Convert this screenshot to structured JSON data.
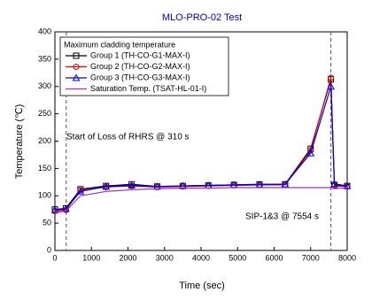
{
  "chart_data": {
    "type": "line",
    "title": "MLO-PRO-02 Test",
    "title_color": "#0000cc",
    "xlabel": "Time (sec)",
    "ylabel": "Temperature (℃)",
    "legend_title": "Maximum cladding temperature",
    "legend": "upper left",
    "x": [
      0,
      300,
      700,
      1400,
      2100,
      2800,
      3500,
      4200,
      4900,
      5600,
      6300,
      7000,
      7554,
      7650,
      8000
    ],
    "series": [
      {
        "name": "Group 1 (TH-CO-G1-MAX-I)",
        "color": "#000000",
        "marker": "square",
        "values": [
          75,
          77,
          112,
          118,
          121,
          117,
          118,
          119,
          120,
          121,
          121,
          186,
          313,
          120,
          118
        ]
      },
      {
        "name": "Group 2 (TH-CO-G2-MAX-I)",
        "color": "#e00000",
        "marker": "circle",
        "values": [
          72,
          74,
          110,
          116,
          118,
          116,
          117,
          118,
          119,
          120,
          120,
          183,
          316,
          118,
          117
        ]
      },
      {
        "name": "Group 3 (TH-CO-G3-MAX-I)",
        "color": "#0000e0",
        "marker": "triangle",
        "values": [
          74,
          76,
          108,
          117,
          119,
          117,
          118,
          119,
          120,
          120,
          121,
          178,
          300,
          122,
          118
        ]
      },
      {
        "name": "Saturation Temp. (TSAT-HL-01-I)",
        "color": "#9933cc",
        "values": [
          70,
          72,
          100,
          108,
          111,
          113,
          114,
          114,
          115,
          115,
          115,
          115,
          115,
          113,
          115
        ]
      }
    ],
    "vlines": [
      310,
      7554
    ],
    "annotations": [
      "Start of Loss of RHRS @ 310 s",
      "SIP-1&3 @ 7554 s"
    ],
    "xlim": [
      0,
      8000
    ],
    "xticks": [
      0,
      1000,
      2000,
      3000,
      4000,
      5000,
      6000,
      7000,
      8000
    ],
    "ylim": [
      0,
      400
    ],
    "yticks": [
      0,
      50,
      100,
      150,
      200,
      250,
      300,
      350,
      400
    ]
  }
}
